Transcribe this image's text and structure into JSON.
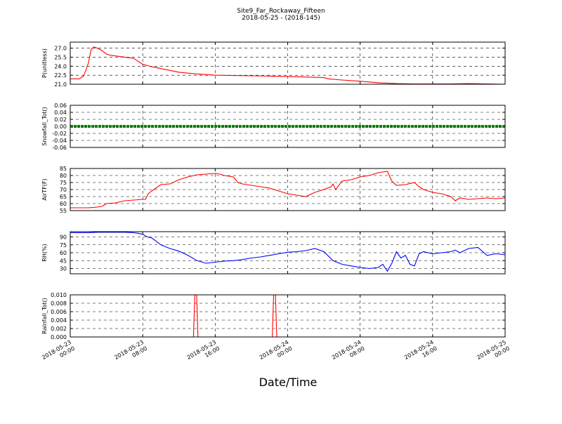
{
  "figure": {
    "title": "Site9_Far_Rockaway_Fifteen",
    "subtitle": "2018-05-25 - (2018-145)",
    "xlabel": "Date/Time",
    "x_ticks": [
      {
        "line1": "2018-05-23",
        "line2": "00:00"
      },
      {
        "line1": "2018-05-23",
        "line2": "08:00"
      },
      {
        "line1": "2018-05-23",
        "line2": "16:00"
      },
      {
        "line1": "2018-05-24",
        "line2": "00:00"
      },
      {
        "line1": "2018-05-24",
        "line2": "08:00"
      },
      {
        "line1": "2018-05-24",
        "line2": "16:00"
      },
      {
        "line1": "2018-05-25",
        "line2": "00:00"
      }
    ]
  },
  "chart_data": [
    {
      "type": "line",
      "ylabel": "P(unitless)",
      "ylim": [
        21.0,
        28.0
      ],
      "yticks": [
        "27.0",
        "25.5",
        "24.0",
        "22.5",
        "21.0"
      ],
      "ytick_values": [
        27.0,
        25.5,
        24.0,
        22.5,
        21.0
      ],
      "grid": true,
      "color": "#ff0000",
      "x_hours": [
        0,
        1,
        1.5,
        2,
        2.3,
        2.6,
        3,
        3.5,
        4,
        4.5,
        5,
        6,
        7,
        8,
        8.5,
        9,
        10,
        11,
        12,
        14,
        16,
        18,
        20,
        22,
        24,
        26,
        28,
        28.5,
        30,
        32,
        34,
        36,
        38,
        40,
        42,
        44,
        46,
        48
      ],
      "y": [
        21.9,
        21.9,
        22.4,
        24.5,
        26.8,
        27.2,
        27.0,
        26.6,
        26.0,
        25.8,
        25.7,
        25.5,
        25.3,
        24.3,
        24.1,
        23.9,
        23.6,
        23.3,
        23.0,
        22.7,
        22.5,
        22.45,
        22.4,
        22.35,
        22.3,
        22.2,
        22.1,
        21.9,
        21.7,
        21.5,
        21.25,
        21.1,
        21.05,
        21.05,
        21.05,
        21.1,
        21.05,
        21.0
      ]
    },
    {
      "type": "line",
      "ylabel": "Snowfall_Tot()",
      "ylim": [
        -0.06,
        0.06
      ],
      "yticks": [
        "0.06",
        "0.04",
        "0.02",
        "0.00",
        "-0.02",
        "-0.04",
        "-0.06"
      ],
      "ytick_values": [
        0.06,
        0.04,
        0.02,
        0.0,
        -0.02,
        -0.04,
        -0.06
      ],
      "grid": true,
      "color": "#007f00",
      "x_hours": [
        0,
        48
      ],
      "y": [
        0.0,
        0.0
      ]
    },
    {
      "type": "line",
      "ylabel": "AirTF(F)",
      "ylim": [
        55,
        85
      ],
      "yticks": [
        "85",
        "80",
        "75",
        "70",
        "65",
        "60",
        "55"
      ],
      "ytick_values": [
        85,
        80,
        75,
        70,
        65,
        60,
        55
      ],
      "grid": true,
      "color": "#ff0000",
      "x_hours": [
        0,
        2,
        3,
        3.5,
        4,
        5,
        6,
        7,
        8,
        8.3,
        8.6,
        9,
        10,
        11,
        12,
        13,
        14,
        15,
        16,
        16.5,
        17,
        18,
        18.5,
        19,
        20,
        21,
        22,
        23,
        24,
        25,
        26,
        27,
        28,
        28.8,
        29,
        29.3,
        30,
        31,
        32,
        33,
        34,
        35,
        35.5,
        36,
        37,
        38,
        38.5,
        39,
        40,
        41,
        42,
        42.5,
        43,
        44,
        45,
        46,
        47,
        48
      ],
      "y": [
        57,
        57,
        57.5,
        58,
        60,
        60.5,
        62,
        62.5,
        63,
        63,
        67,
        69,
        73.5,
        74,
        77,
        79,
        80.5,
        81,
        81.5,
        81,
        80,
        79,
        75,
        74,
        73,
        72,
        71,
        69,
        67,
        66,
        65,
        68,
        70,
        72,
        74,
        70,
        76,
        77,
        79,
        80,
        82,
        83,
        76,
        73,
        73.5,
        75,
        72,
        70,
        68,
        67,
        65,
        62,
        64,
        63,
        63.5,
        64,
        63.5,
        64
      ]
    },
    {
      "type": "line",
      "ylabel": "RH(%)",
      "ylim": [
        20,
        100
      ],
      "yticks": [
        "90",
        "75",
        "60",
        "45",
        "30"
      ],
      "ytick_values": [
        90,
        75,
        60,
        45,
        30
      ],
      "grid": true,
      "color": "#0000ff",
      "x_hours": [
        0,
        2,
        3,
        6,
        7,
        7.5,
        8,
        8.5,
        9,
        10,
        11,
        12,
        13,
        14,
        15,
        16,
        17,
        18,
        19,
        20,
        21,
        22,
        23,
        24,
        25,
        26,
        27,
        28,
        29,
        30,
        31,
        32,
        33,
        34,
        34.5,
        35,
        35.5,
        36,
        36.5,
        37,
        37.5,
        38,
        38.5,
        39,
        40,
        41,
        42,
        42.5,
        43,
        44,
        45,
        46,
        47,
        48
      ],
      "y": [
        98,
        98,
        99,
        99,
        98,
        97,
        95,
        90,
        88,
        75,
        68,
        63,
        55,
        45,
        40,
        42,
        44,
        45,
        47,
        50,
        52,
        55,
        58,
        61,
        62,
        64,
        68,
        62,
        45,
        38,
        35,
        32,
        30,
        32,
        38,
        25,
        40,
        62,
        50,
        55,
        38,
        35,
        58,
        62,
        58,
        60,
        62,
        65,
        60,
        68,
        70,
        55,
        58,
        56
      ]
    },
    {
      "type": "line",
      "ylabel": "Rainfall_Tot()",
      "ylim": [
        0,
        0.01
      ],
      "yticks": [
        "0.010",
        "0.008",
        "0.006",
        "0.004",
        "0.002",
        "0.000"
      ],
      "ytick_values": [
        0.01,
        0.008,
        0.006,
        0.004,
        0.002,
        0.0
      ],
      "grid": true,
      "color": "#ff0000",
      "x_hours": [
        0,
        13.6,
        13.75,
        13.95,
        14.1,
        22.3,
        22.45,
        22.65,
        22.8,
        48
      ],
      "y": [
        0,
        0,
        0.01,
        0.01,
        0,
        0,
        0.01,
        0.01,
        0,
        0
      ]
    }
  ]
}
